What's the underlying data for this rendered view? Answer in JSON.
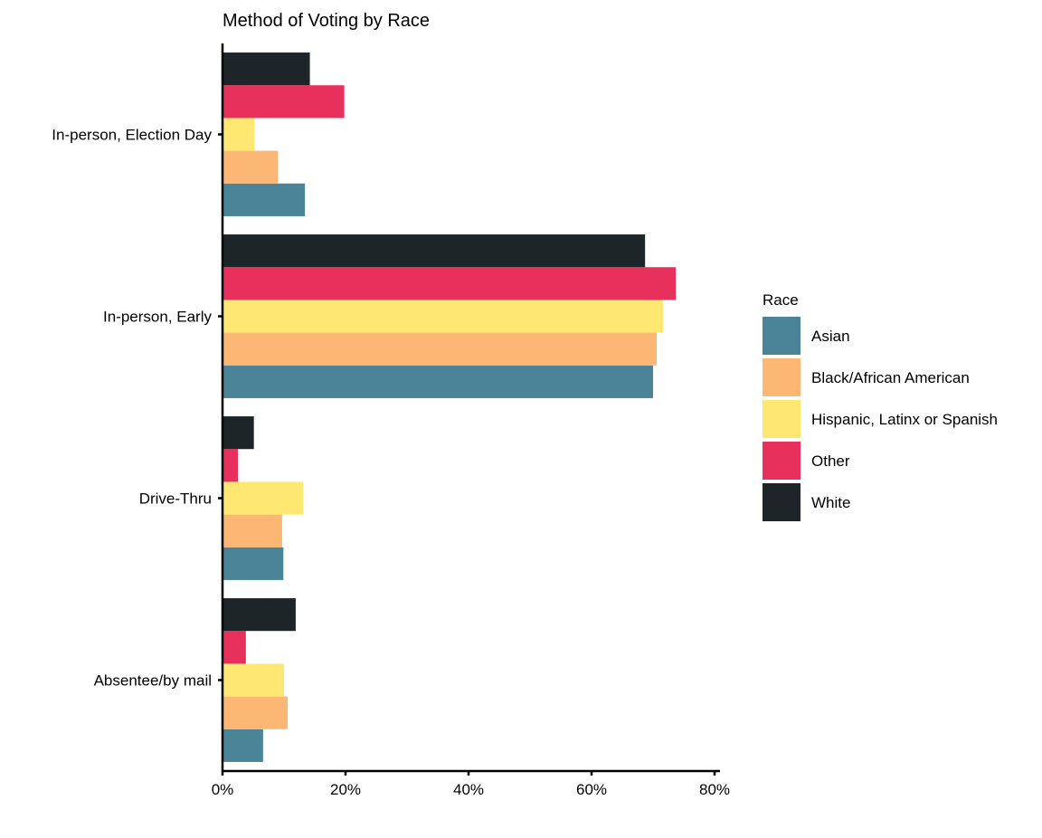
{
  "chart_data": {
    "type": "bar",
    "orientation": "horizontal",
    "title": "Method of Voting by Race",
    "xlabel": "",
    "ylabel": "",
    "xlim": [
      0,
      80
    ],
    "x_ticks": [
      0,
      20,
      40,
      60,
      80
    ],
    "x_tick_labels": [
      "0%",
      "20%",
      "40%",
      "60%",
      "80%"
    ],
    "grid": false,
    "legend_position": "right",
    "legend_title": "Race",
    "categories": [
      "In-person, Election Day",
      "In-person, Early",
      "Drive-Thru",
      "Absentee/by mail"
    ],
    "series": [
      {
        "name": "Asian",
        "color": "#4b8499",
        "values": [
          13.4,
          70.0,
          9.9,
          6.6
        ]
      },
      {
        "name": "Black/African American",
        "color": "#fdb774",
        "values": [
          9.0,
          70.6,
          9.7,
          10.6
        ]
      },
      {
        "name": "Hispanic, Latinx or Spanish",
        "color": "#fee872",
        "values": [
          5.2,
          71.6,
          13.1,
          10.0
        ]
      },
      {
        "name": "Other",
        "color": "#e8305d",
        "values": [
          19.8,
          73.7,
          2.5,
          3.8
        ]
      },
      {
        "name": "White",
        "color": "#1e2528",
        "values": [
          14.2,
          68.7,
          5.1,
          11.9
        ]
      }
    ]
  }
}
